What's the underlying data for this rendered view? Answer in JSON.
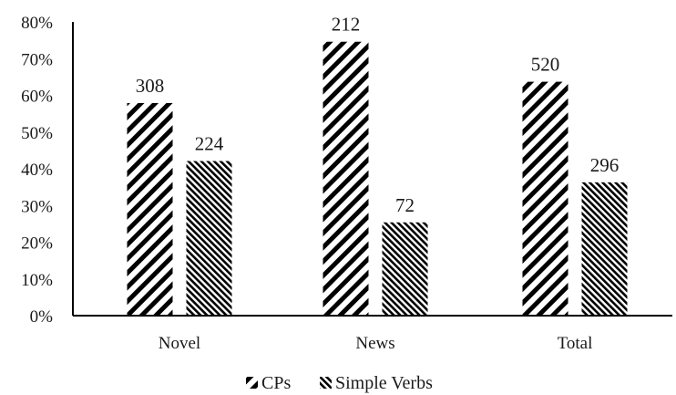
{
  "chart_data": {
    "type": "bar",
    "categories": [
      "Novel",
      "News",
      "Total"
    ],
    "series": [
      {
        "name": "CPs",
        "values": [
          57.9,
          74.6,
          63.7
        ],
        "labels": [
          "308",
          "212",
          "520"
        ],
        "pattern": "wide-diagonal-hatch",
        "color": "#000000"
      },
      {
        "name": "Simple Verbs",
        "values": [
          42.1,
          25.4,
          36.3
        ],
        "labels": [
          "224",
          "72",
          "296"
        ],
        "pattern": "fine-diagonal-hatch",
        "color": "#000000"
      }
    ],
    "y_ticks": [
      "0%",
      "10%",
      "20%",
      "30%",
      "40%",
      "50%",
      "60%",
      "70%",
      "80%"
    ],
    "ylim": [
      0,
      80
    ],
    "title": "",
    "xlabel": "",
    "ylabel": "",
    "grid": false,
    "legend_position": "bottom-center"
  }
}
